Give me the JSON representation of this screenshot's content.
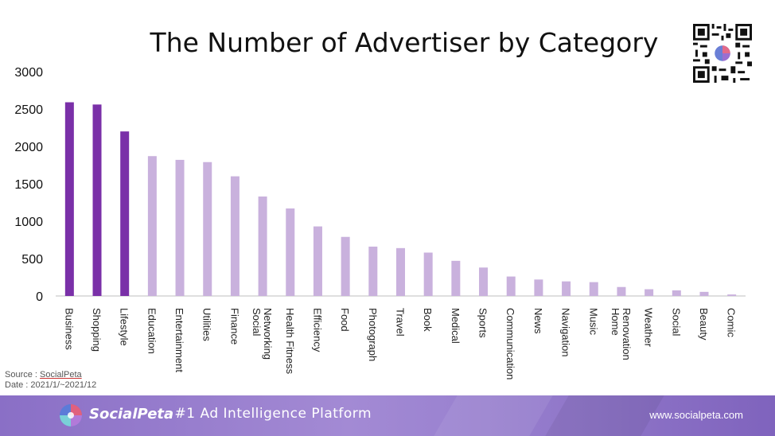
{
  "chart_data": {
    "type": "bar",
    "title": "The Number of Advertiser by Category",
    "categories": [
      "Business",
      "Shopping",
      "Lifestyle",
      "Education",
      "Entertainment",
      "Utilities",
      "Finance",
      "Social Networking",
      "Health Fitness",
      "Efficiency",
      "Food",
      "Photograph",
      "Travel",
      "Book",
      "Medical",
      "Sports",
      "Communication",
      "News",
      "Navigation",
      "Music",
      "Home Renovation",
      "Weather",
      "Social",
      "Beauty",
      "Comic"
    ],
    "values": [
      2590,
      2560,
      2200,
      1870,
      1820,
      1790,
      1600,
      1330,
      1170,
      930,
      790,
      660,
      640,
      580,
      470,
      380,
      260,
      220,
      195,
      185,
      120,
      90,
      75,
      55,
      20
    ],
    "highlight_count": 3,
    "ylim": [
      0,
      3000
    ],
    "yticks": [
      0,
      500,
      1000,
      1500,
      2000,
      2500,
      3000
    ],
    "xlabel": "",
    "ylabel": "",
    "colors": {
      "highlight": "#7a30a8",
      "normal": "#c9b1dd"
    }
  },
  "source": {
    "label": "Source : ",
    "value": "SocialPeta",
    "date_label": "Date : ",
    "date_value": "2021/1/~2021/12"
  },
  "footer": {
    "brand": "SocialPeta",
    "tagline": "- #1 Ad Intelligence Platform",
    "url": "www.socialpeta.com"
  },
  "qr_icon": "qr-code-icon"
}
